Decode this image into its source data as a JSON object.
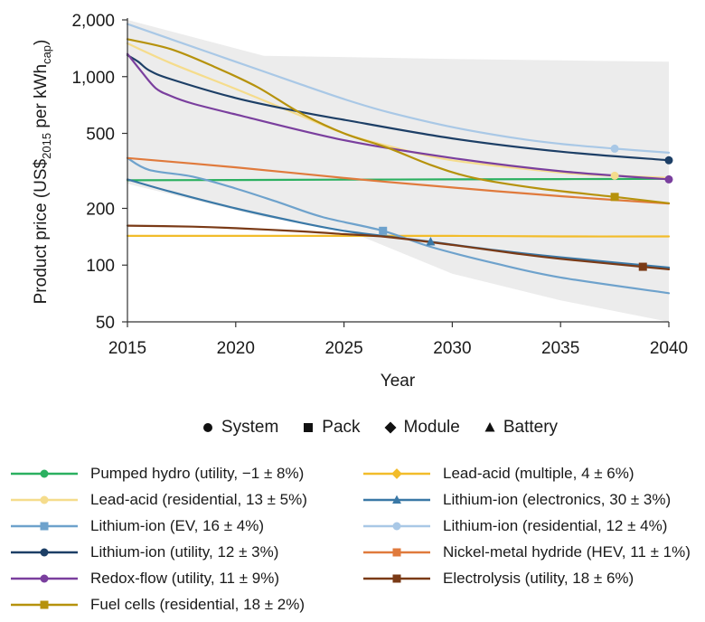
{
  "chart_data": {
    "type": "line",
    "xlabel": "Year",
    "ylabel": "Product price (US$2015 per kWhcap)",
    "ylabel_parts": {
      "pre": "Product price (US$",
      "sub1": "2015",
      "mid": " per kWh",
      "sub2": "cap",
      "post": ")"
    },
    "y_scale": "log",
    "xlim": [
      2015,
      2040
    ],
    "ylim": [
      50,
      2000
    ],
    "x_ticks": [
      "2015",
      "2020",
      "2025",
      "2030",
      "2035",
      "2040"
    ],
    "y_ticks": [
      "50",
      "100",
      "200",
      "500",
      "1,000",
      "2,000"
    ],
    "x_tick_values": [
      2015,
      2020,
      2025,
      2030,
      2035,
      2040
    ],
    "y_tick_values": [
      50,
      100,
      200,
      500,
      1000,
      2000
    ],
    "uncertainty_band": {
      "color": "#ececec",
      "x": [
        2015,
        2021.3,
        2025,
        2030,
        2035,
        2040
      ],
      "upper": [
        2000,
        1290,
        1270,
        1240,
        1220,
        1200
      ],
      "lower": [
        270,
        180,
        155,
        90,
        65,
        50
      ]
    },
    "marker_legend": [
      {
        "shape": "circle",
        "label": "System"
      },
      {
        "shape": "square",
        "label": "Pack"
      },
      {
        "shape": "diamond",
        "label": "Module"
      },
      {
        "shape": "triangle",
        "label": "Battery"
      }
    ],
    "series": [
      {
        "name": "Pumped hydro (utility, −1 ± 8%)",
        "color": "#2bb060",
        "marker": "circle",
        "x": [
          2015,
          2020,
          2025,
          2030,
          2035,
          2040
        ],
        "y": [
          282,
          283,
          284,
          285,
          286,
          287
        ],
        "marker_at": null
      },
      {
        "name": "Lead-acid (multiple, 4 ± 6%)",
        "color": "#f2bc2a",
        "marker": "diamond",
        "x": [
          2015,
          2020,
          2025,
          2030,
          2035,
          2040
        ],
        "y": [
          143,
          143,
          143,
          143,
          142,
          142
        ],
        "marker_at": null
      },
      {
        "name": "Lead-acid (residential, 13 ± 5%)",
        "color": "#f5dc8c",
        "marker": "circle",
        "x": [
          2015,
          2017,
          2020,
          2023,
          2025,
          2027,
          2030,
          2035,
          2037.5,
          2040
        ],
        "y": [
          1500,
          1180,
          860,
          620,
          500,
          430,
          360,
          310,
          298,
          290
        ],
        "marker_at": [
          2037.5,
          298
        ]
      },
      {
        "name": "Lithium-ion (electronics, 30 ± 3%)",
        "color": "#3a78a6",
        "marker": "triangle",
        "x": [
          2015,
          2017,
          2020,
          2023,
          2025,
          2027,
          2029,
          2032,
          2035,
          2040
        ],
        "y": [
          285,
          245,
          200,
          168,
          152,
          142,
          133,
          120,
          110,
          97
        ],
        "marker_at": [
          2029,
          133
        ]
      },
      {
        "name": "Lithium-ion (EV, 16 ± 4%)",
        "color": "#6ea2cc",
        "marker": "square",
        "x": [
          2015,
          2016,
          2018,
          2020,
          2022,
          2024,
          2026.8,
          2029,
          2032,
          2035,
          2040
        ],
        "y": [
          370,
          320,
          295,
          255,
          215,
          180,
          152,
          125,
          102,
          86,
          71
        ],
        "marker_at": [
          2026.8,
          152
        ]
      },
      {
        "name": "Lithium-ion (residential, 12 ± 4%)",
        "color": "#a9c8e6",
        "marker": "circle",
        "x": [
          2015,
          2017,
          2020,
          2023,
          2025,
          2027,
          2030,
          2033,
          2035,
          2037.5,
          2040
        ],
        "y": [
          1900,
          1580,
          1200,
          910,
          760,
          650,
          540,
          470,
          440,
          415,
          395
        ],
        "marker_at": [
          2037.5,
          415
        ]
      },
      {
        "name": "Lithium-ion (utility, 12 ± 3%)",
        "color": "#1d3f66",
        "marker": "circle",
        "x": [
          2015,
          2015.5,
          2016,
          2017,
          2020,
          2023,
          2025,
          2030,
          2035,
          2040
        ],
        "y": [
          1300,
          1200,
          1080,
          970,
          770,
          650,
          590,
          470,
          400,
          360
        ],
        "marker_at": [
          2040,
          360
        ]
      },
      {
        "name": "Nickel-metal hydride (HEV, 11 ± 1%)",
        "color": "#e07a3c",
        "marker": "square",
        "x": [
          2015,
          2020,
          2025,
          2030,
          2035,
          2040
        ],
        "y": [
          370,
          330,
          290,
          258,
          232,
          212
        ],
        "marker_at": null
      },
      {
        "name": "Redox-flow (utility, 11 ± 9%)",
        "color": "#7a3f9e",
        "marker": "circle",
        "x": [
          2015,
          2015.6,
          2016.3,
          2017,
          2018,
          2020,
          2025,
          2030,
          2035,
          2040
        ],
        "y": [
          1320,
          1080,
          870,
          790,
          720,
          630,
          460,
          370,
          315,
          285
        ],
        "marker_at": [
          2040,
          285
        ]
      },
      {
        "name": "Electrolysis (utility, 18 ± 6%)",
        "color": "#7a3a16",
        "marker": "square",
        "x": [
          2015,
          2018,
          2020,
          2023,
          2025,
          2027,
          2030,
          2033,
          2035,
          2038.8,
          2040
        ],
        "y": [
          162,
          160,
          157,
          151,
          146,
          141,
          128,
          115,
          108,
          98,
          95
        ],
        "marker_at": [
          2038.8,
          98
        ]
      },
      {
        "name": "Fuel cells (residential, 18 ± 2%)",
        "color": "#b6920c",
        "marker": "square",
        "x": [
          2015,
          2017,
          2019,
          2021,
          2023,
          2025,
          2027,
          2029,
          2031,
          2034,
          2037.5,
          2040
        ],
        "y": [
          1580,
          1400,
          1130,
          880,
          640,
          500,
          420,
          340,
          290,
          255,
          230,
          213
        ],
        "marker_at": [
          2037.5,
          230
        ]
      }
    ]
  }
}
